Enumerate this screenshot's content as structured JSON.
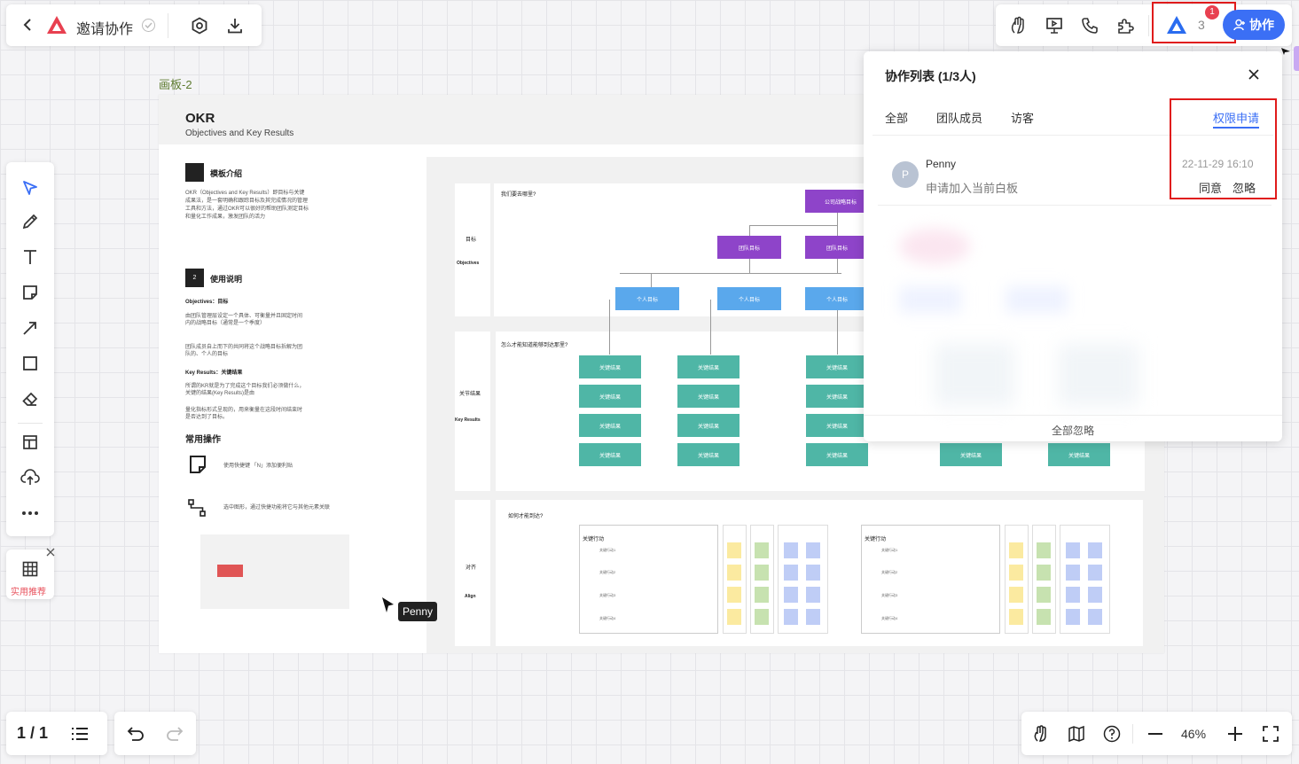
{
  "topbar": {
    "title": "邀请协作"
  },
  "board": {
    "frame_label": "画板-2",
    "okr_title": "OKR",
    "okr_subtitle": "Objectives and Key Results",
    "sec1": "模板介绍",
    "sec1_text": "OKR（Objectives and Key Results）即目标与关键成果法，是一套明确和跟踪目标及其完成情况的管理工具和方法，通过OKR可以很好的帮助团队测定目标和量化工作成果，激发团队的活力",
    "sec2_num": "2",
    "sec2": "使用说明",
    "obj_label": "Objectives：目标",
    "obj_text1": "由团队管理层设定一个具体、可衡量并且固定时间内的战略目标（通常是一个季度）",
    "obj_text2": "团队成员自上而下的共同将这个战略目标拆解为团队的、个人的目标",
    "kr_label": "Key Results：关键结果",
    "kr_text1": "所谓的KR就是为了完成这个目标我们必须做什么，关键的结果(Key Results)是由",
    "kr_text2": "量化指标形式呈现的，用来衡量在这段时间结束时是否达到了目标。",
    "common_ops": "常用操作",
    "op1": "使用快捷键 「N」添加便利贴",
    "op2": "选中图形，通过快捷功能将它与其他元素关联",
    "q1": "我们要去哪里?",
    "row1_cn": "目标",
    "row1_en": "Objectives",
    "company_goal": "公司战略目标",
    "team_goal": "团队目标",
    "personal_goal": "个人目标",
    "q2": "怎么才能知道能够到达那里?",
    "row2_cn": "关节结果",
    "row2_en": "Key Results",
    "kr_node": "关键结果",
    "q3": "如何才能到达?",
    "row3_cn": "对齐",
    "row3_en": "Align",
    "action_title": "关键行动",
    "actions": [
      "关键行动1",
      "关键行动2",
      "关键行动3",
      "关键行动4"
    ],
    "cursor_name": "Penny"
  },
  "right_toolbar": {
    "avatar_count": "3",
    "notification": "1",
    "collab_button": "协作"
  },
  "panel": {
    "title": "协作列表 (1/3人)",
    "tabs": [
      "全部",
      "团队成员",
      "访客",
      "权限申请"
    ],
    "request": {
      "avatar": "P",
      "name": "Penny",
      "message": "申请加入当前白板",
      "time": "22-11-29 16:10",
      "agree": "同意",
      "ignore": "忽略"
    },
    "ignore_all": "全部忽略"
  },
  "left_toolbar": {
    "recommend": "实用推荐"
  },
  "bottom": {
    "page": "1 / 1",
    "zoom": "46%"
  }
}
